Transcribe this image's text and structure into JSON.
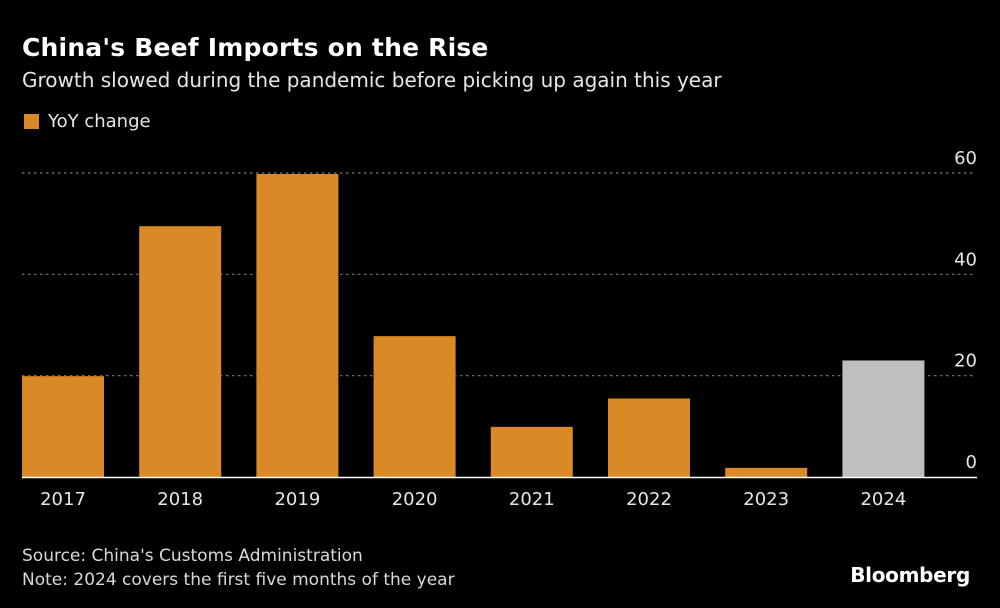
{
  "chart_data": {
    "type": "bar",
    "title": "China's Beef Imports on the Rise",
    "subtitle": "Growth slowed during the pandemic before picking up again this year",
    "xlabel": "",
    "ylabel": "",
    "categories": [
      "2017",
      "2018",
      "2019",
      "2020",
      "2021",
      "2022",
      "2023",
      "2024"
    ],
    "series": [
      {
        "name": "YoY change",
        "values": [
          19.9,
          49.5,
          59.8,
          27.8,
          9.9,
          15.5,
          1.8,
          23.0
        ],
        "color": "#d98a26",
        "highlight": {
          "category": "2024",
          "color": "#bfbfbf"
        }
      }
    ],
    "ylim": [
      0,
      60
    ],
    "yticks": [
      0,
      20,
      40,
      60
    ],
    "grid": true,
    "y_axis_side": "right",
    "legend": {
      "placement": "top-left",
      "entries": [
        "YoY change"
      ]
    }
  },
  "footer": {
    "source": "Source: China's Customs Administration",
    "note": "Note: 2024 covers the first five months of the year",
    "brand": "Bloomberg"
  },
  "colors": {
    "background": "#000000",
    "bar": "#d98a26",
    "bar_highlight": "#bfbfbf",
    "grid": "#7a7a7a",
    "axis": "#ffffff"
  }
}
